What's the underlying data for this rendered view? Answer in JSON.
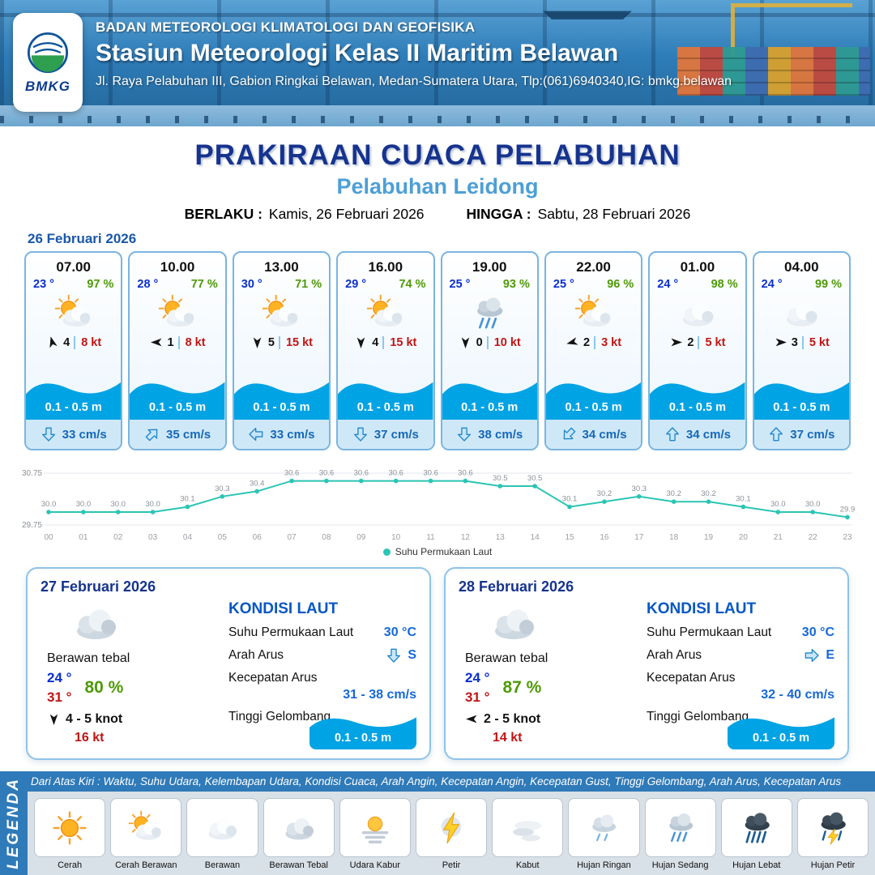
{
  "header": {
    "agency": "BADAN METEOROLOGI KLIMATOLOGI DAN GEOFISIKA",
    "station": "Stasiun Meteorologi Kelas II Maritim Belawan",
    "address": "Jl. Raya Pelabuhan III, Gabion Ringkai Belawan, Medan-Sumatera Utara, Tlp:(061)6940340,IG: bmkg.belawan",
    "logo_text": "BMKG"
  },
  "title": {
    "main": "PRAKIRAAN CUACA PELABUHAN",
    "port": "Pelabuhan Leidong",
    "berlaku_label": "BERLAKU :",
    "berlaku_value": "Kamis, 26 Februari 2026",
    "hingga_label": "HINGGA :",
    "hingga_value": "Sabtu, 28 Februari 2026"
  },
  "day_label": "26 Februari 2026",
  "cards": [
    {
      "time": "07.00",
      "temp": "23 °",
      "humidity": "97 %",
      "icon": "cerah-berawan",
      "wind_dir_deg": -15,
      "wind_speed": "4",
      "gust": "8 kt",
      "wave": "0.1 - 0.5 m",
      "current_dir_deg": 180,
      "current": "33 cm/s"
    },
    {
      "time": "10.00",
      "temp": "28 °",
      "humidity": "77 %",
      "icon": "cerah-berawan",
      "wind_dir_deg": -90,
      "wind_speed": "1",
      "gust": "8 kt",
      "wave": "0.1 - 0.5 m",
      "current_dir_deg": 45,
      "current": "35 cm/s"
    },
    {
      "time": "13.00",
      "temp": "30 °",
      "humidity": "71 %",
      "icon": "cerah-berawan",
      "wind_dir_deg": 180,
      "wind_speed": "5",
      "gust": "15 kt",
      "wave": "0.1 - 0.5 m",
      "current_dir_deg": 270,
      "current": "33 cm/s"
    },
    {
      "time": "16.00",
      "temp": "29 °",
      "humidity": "74 %",
      "icon": "cerah-berawan",
      "wind_dir_deg": 180,
      "wind_speed": "4",
      "gust": "15 kt",
      "wave": "0.1 - 0.5 m",
      "current_dir_deg": 180,
      "current": "37 cm/s"
    },
    {
      "time": "19.00",
      "temp": "25 °",
      "humidity": "93 %",
      "icon": "hujan-sedang",
      "wind_dir_deg": 180,
      "wind_speed": "0",
      "gust": "10 kt",
      "wave": "0.1 - 0.5 m",
      "current_dir_deg": 180,
      "current": "38 cm/s"
    },
    {
      "time": "22.00",
      "temp": "25 °",
      "humidity": "96 %",
      "icon": "cerah-berawan",
      "wind_dir_deg": -105,
      "wind_speed": "2",
      "gust": "3 kt",
      "wave": "0.1 - 0.5 m",
      "current_dir_deg": 225,
      "current": "34 cm/s"
    },
    {
      "time": "01.00",
      "temp": "24 °",
      "humidity": "98 %",
      "icon": "berawan",
      "wind_dir_deg": 90,
      "wind_speed": "2",
      "gust": "5 kt",
      "wave": "0.1 - 0.5 m",
      "current_dir_deg": 0,
      "current": "34 cm/s"
    },
    {
      "time": "04.00",
      "temp": "24 °",
      "humidity": "99 %",
      "icon": "berawan",
      "wind_dir_deg": 90,
      "wind_speed": "3",
      "gust": "5 kt",
      "wave": "0.1 - 0.5 m",
      "current_dir_deg": 0,
      "current": "37 cm/s"
    }
  ],
  "chart_data": {
    "type": "line",
    "series_label": "Suhu Permukaan Laut",
    "x": [
      "00",
      "01",
      "02",
      "03",
      "04",
      "05",
      "06",
      "07",
      "08",
      "09",
      "10",
      "11",
      "12",
      "13",
      "14",
      "15",
      "16",
      "17",
      "18",
      "19",
      "20",
      "21",
      "22",
      "23"
    ],
    "values": [
      30.0,
      30.0,
      30.0,
      30.0,
      30.1,
      30.3,
      30.4,
      30.6,
      30.6,
      30.6,
      30.6,
      30.6,
      30.6,
      30.5,
      30.5,
      30.1,
      30.2,
      30.3,
      30.2,
      30.2,
      30.1,
      30.0,
      30.0,
      29.9
    ],
    "ylim": [
      29.75,
      30.75
    ],
    "unit": "°C",
    "legend_position": "bottom",
    "grid": true
  },
  "daily": [
    {
      "date": "27 Februari 2026",
      "icon": "berawan-tebal",
      "condition": "Berawan tebal",
      "temp_min": "24 °",
      "temp_max": "31 °",
      "humidity": "80 %",
      "wind_dir_deg": 180,
      "wind": "4 - 5 knot",
      "gust": "16 kt",
      "sea": {
        "title": "KONDISI LAUT",
        "sst_label": "Suhu Permukaan Laut",
        "sst": "30 °C",
        "current_dir_label": "Arah Arus",
        "current_dir_deg": 180,
        "current_dir": "S",
        "current_speed_label": "Kecepatan Arus",
        "current_speed": "31 - 38 cm/s",
        "wave_label": "Tinggi Gelombang",
        "wave": "0.1 - 0.5 m"
      }
    },
    {
      "date": "28 Februari 2026",
      "icon": "berawan-tebal",
      "condition": "Berawan tebal",
      "temp_min": "24 °",
      "temp_max": "31 °",
      "humidity": "87 %",
      "wind_dir_deg": -90,
      "wind": "2 - 5 knot",
      "gust": "14 kt",
      "sea": {
        "title": "KONDISI LAUT",
        "sst_label": "Suhu Permukaan Laut",
        "sst": "30 °C",
        "current_dir_label": "Arah Arus",
        "current_dir_deg": 90,
        "current_dir": "E",
        "current_speed_label": "Kecepatan Arus",
        "current_speed": "32 - 40 cm/s",
        "wave_label": "Tinggi Gelombang",
        "wave": "0.1 - 0.5 m"
      }
    }
  ],
  "legend": {
    "title": "LEGENDA",
    "description": "Dari Atas Kiri : Waktu, Suhu Udara, Kelembapan Udara, Kondisi Cuaca, Arah Angin, Kecepatan Angin, Kecepatan Gust, Tinggi Gelombang, Arah Arus, Kecepatan Arus",
    "items": [
      {
        "label": "Cerah",
        "icon": "cerah"
      },
      {
        "label": "Cerah Berawan",
        "icon": "cerah-berawan"
      },
      {
        "label": "Berawan",
        "icon": "berawan"
      },
      {
        "label": "Berawan Tebal",
        "icon": "berawan-tebal"
      },
      {
        "label": "Udara Kabur",
        "icon": "udara-kabur"
      },
      {
        "label": "Petir",
        "icon": "petir"
      },
      {
        "label": "Kabut",
        "icon": "kabut"
      },
      {
        "label": "Hujan Ringan",
        "icon": "hujan-ringan"
      },
      {
        "label": "Hujan Sedang",
        "icon": "hujan-sedang"
      },
      {
        "label": "Hujan Lebat",
        "icon": "hujan-lebat"
      },
      {
        "label": "Hujan Petir",
        "icon": "hujan-petir"
      }
    ]
  },
  "colors": {
    "header_blue": "#2e7cb8",
    "title_navy": "#16338e",
    "port_blue": "#4d9fd6",
    "temp_blue": "#0a2fd0",
    "temp_red": "#c11414",
    "humidity_green": "#4e9a06",
    "wave_blue": "#00a3e4",
    "current_blue": "#1568b8",
    "chart_line": "#2bc5b4",
    "legend_bar_blue": "#2f7ab8"
  }
}
